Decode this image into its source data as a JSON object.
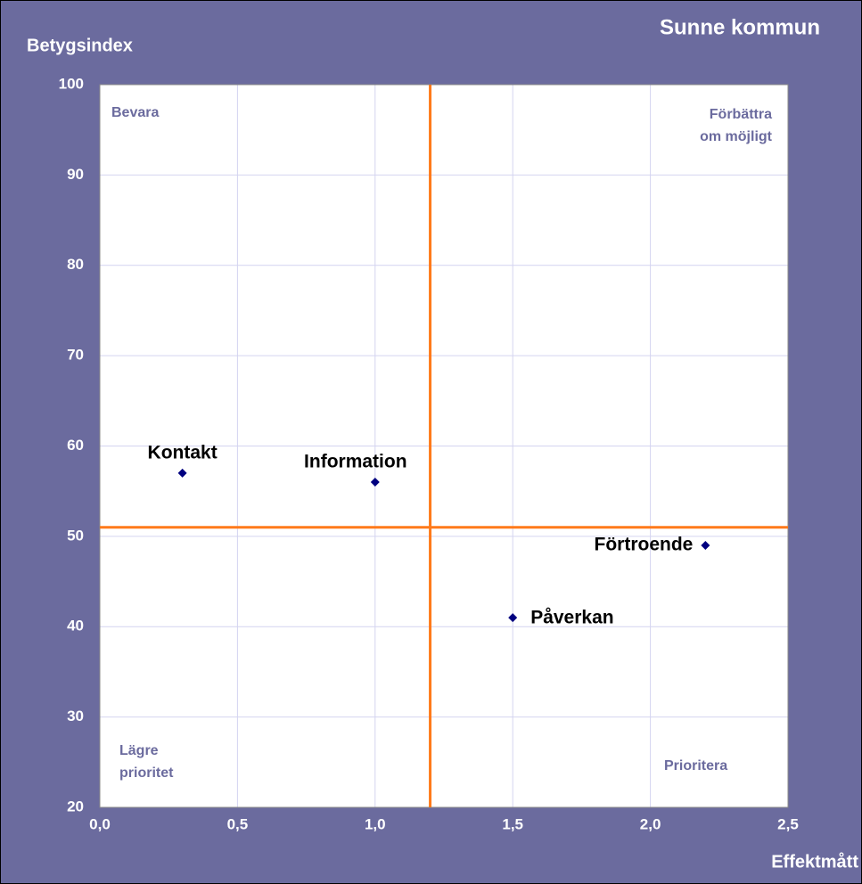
{
  "chart_data": {
    "type": "scatter",
    "title": "Sunne kommun",
    "ylabel": "Betygsindex",
    "xlabel": "Effektmått",
    "x": [
      0.3,
      1.0,
      2.2,
      1.5
    ],
    "values": [
      57,
      56,
      49,
      41
    ],
    "labels": [
      "Kontakt",
      "Information",
      "Förtroende",
      "Påverkan"
    ],
    "color": "#000080",
    "xlim": [
      0,
      2.5
    ],
    "ylim": [
      20,
      100
    ],
    "xticks": [
      {
        "value": 0,
        "label": "0,0"
      },
      {
        "value": 0.5,
        "label": "0,5"
      },
      {
        "value": 1,
        "label": "1,0"
      },
      {
        "value": 1.5,
        "label": "1,5"
      },
      {
        "value": 2,
        "label": "2,0"
      },
      {
        "value": 2.5,
        "label": "2,5"
      }
    ],
    "yticks": [
      20,
      30,
      40,
      50,
      60,
      70,
      80,
      90,
      100
    ],
    "grid": true,
    "vline": 1.2,
    "hline": 51,
    "line_color": "#ff7a1a",
    "annotations": [
      [
        "Bevara"
      ],
      [
        "Förbättra",
        "om möjligt"
      ],
      [
        "Lägre",
        "prioritet"
      ],
      [
        "Prioritera"
      ]
    ]
  }
}
